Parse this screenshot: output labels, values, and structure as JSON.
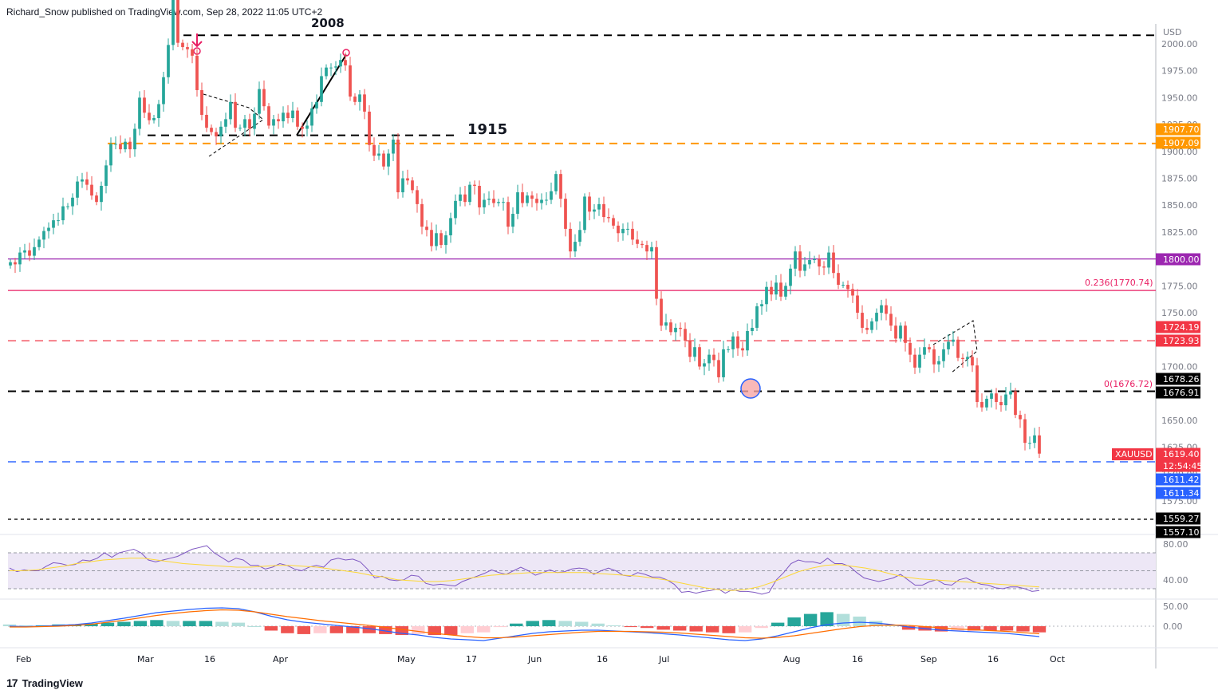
{
  "header": {
    "publisher_line": "Richard_Snow published on TradingView.com, Sep 28, 2022 11:05 UTC+2"
  },
  "footer": {
    "brand": "TradingView",
    "logo_glyph": "17"
  },
  "chart_data": {
    "type": "candlestick",
    "symbol": "XAUUSD",
    "currency": "USD",
    "x_labels": [
      "Feb",
      "Mar",
      "16",
      "Apr",
      "May",
      "17",
      "Jun",
      "16",
      "Jul",
      "Aug",
      "16",
      "Sep",
      "16",
      "Oct"
    ],
    "y_ticks": [
      2000.0,
      1975.0,
      1950.0,
      1925.0,
      1900.0,
      1875.0,
      1850.0,
      1825.0,
      1800.0,
      1775.0,
      1750.0,
      1725.0,
      1700.0,
      1675.0,
      1650.0,
      1625.0,
      1600.0,
      1575.0
    ],
    "y_tick_labels": [
      "2000.00",
      "1975.00",
      "1950.00",
      "1925.00",
      "1900.00",
      "1875.00",
      "1850.00",
      "1825.00",
      "1800.00",
      "1775.00",
      "1750.00",
      "1725.00",
      "1700.00",
      "1675.00",
      "1650.00",
      "1625.00",
      "1600.00",
      "1575.00"
    ],
    "ylim": [
      1556,
      2010
    ],
    "grid": false,
    "annotations": {
      "label_2008": "2008",
      "label_1915": "1915",
      "fib_0236": "0.236(1770.74)",
      "fib_0": "0(1676.72)"
    },
    "levels": [
      {
        "value": 2008,
        "style": "dashed",
        "color": "#000000"
      },
      {
        "value": 1915,
        "style": "dashed",
        "color": "#000000"
      },
      {
        "value": 1907.4,
        "style": "dashed",
        "color": "#ff9800"
      },
      {
        "value": 1800,
        "style": "solid",
        "color": "#9c27b0"
      },
      {
        "value": 1770.74,
        "style": "solid",
        "color": "#e91e63"
      },
      {
        "value": 1724,
        "style": "dashed",
        "color": "#f23645"
      },
      {
        "value": 1677,
        "style": "dashed",
        "color": "#000000"
      },
      {
        "value": 1611.4,
        "style": "dashed",
        "color": "#2962ff"
      },
      {
        "value": 1558,
        "style": "dashed",
        "color": "#000000"
      }
    ],
    "price_badges": [
      {
        "text": "1907.70",
        "value": 1907.7,
        "bg": "#ff9800"
      },
      {
        "text": "1907.09",
        "value": 1907.09,
        "bg": "#ff9800"
      },
      {
        "text": "1800.00",
        "value": 1800,
        "bg": "#9c27b0"
      },
      {
        "text": "1724.19",
        "value": 1724.19,
        "bg": "#f23645"
      },
      {
        "text": "1723.93",
        "value": 1723.93,
        "bg": "#f23645"
      },
      {
        "text": "1678.26",
        "value": 1678.26,
        "bg": "#000000"
      },
      {
        "text": "1676.91",
        "value": 1676.91,
        "bg": "#000000"
      },
      {
        "text": "1619.40",
        "value": 1619.4,
        "bg": "#f23645"
      },
      {
        "text": "12:54:45",
        "value": 1609.5,
        "bg": "#f23645"
      },
      {
        "text": "1611.42",
        "value": 1611.42,
        "bg": "#2962ff"
      },
      {
        "text": "1611.34",
        "value": 1611.34,
        "bg": "#2962ff"
      },
      {
        "text": "1559.27",
        "value": 1559.27,
        "bg": "#000000"
      },
      {
        "text": "1557.10",
        "value": 1557.1,
        "bg": "#000000"
      }
    ],
    "symbol_badge": {
      "text": "XAUUSD",
      "bg": "#f23645"
    },
    "closes": [
      1797,
      1795,
      1806,
      1808,
      1803,
      1811,
      1818,
      1826,
      1829,
      1836,
      1836,
      1849,
      1849,
      1857,
      1872,
      1874,
      1869,
      1859,
      1853,
      1868,
      1887,
      1907,
      1907,
      1902,
      1909,
      1902,
      1921,
      1950,
      1936,
      1929,
      1931,
      1944,
      1969,
      1999,
      2045,
      2001,
      1997,
      1995,
      1989,
      1957,
      1934,
      1922,
      1918,
      1914,
      1923,
      1930,
      1946,
      1922,
      1922,
      1930,
      1921,
      1935,
      1958,
      1942,
      1924,
      1930,
      1928,
      1936,
      1931,
      1938,
      1923,
      1921,
      1924,
      1940,
      1946,
      1970,
      1978,
      1978,
      1979,
      1985,
      1980,
      1951,
      1946,
      1953,
      1937,
      1906,
      1896,
      1898,
      1886,
      1898,
      1911,
      1862,
      1875,
      1873,
      1864,
      1851,
      1830,
      1827,
      1812,
      1824,
      1813,
      1822,
      1838,
      1854,
      1860,
      1853,
      1869,
      1868,
      1848,
      1855,
      1856,
      1852,
      1853,
      1853,
      1830,
      1842,
      1862,
      1852,
      1859,
      1856,
      1852,
      1855,
      1855,
      1863,
      1879,
      1856,
      1828,
      1807,
      1816,
      1827,
      1858,
      1844,
      1846,
      1851,
      1839,
      1838,
      1831,
      1824,
      1828,
      1828,
      1818,
      1814,
      1813,
      1807,
      1811,
      1763,
      1738,
      1741,
      1732,
      1736,
      1735,
      1724,
      1709,
      1718,
      1700,
      1703,
      1711,
      1706,
      1690,
      1716,
      1716,
      1728,
      1717,
      1715,
      1733,
      1736,
      1756,
      1758,
      1774,
      1767,
      1778,
      1765,
      1775,
      1791,
      1807,
      1789,
      1795,
      1799,
      1800,
      1793,
      1792,
      1806,
      1787,
      1776,
      1776,
      1772,
      1766,
      1750,
      1736,
      1734,
      1742,
      1750,
      1757,
      1749,
      1738,
      1726,
      1738,
      1722,
      1711,
      1699,
      1711,
      1718,
      1716,
      1702,
      1705,
      1716,
      1723,
      1725,
      1708,
      1707,
      1709,
      1701,
      1667,
      1662,
      1670,
      1675,
      1667,
      1664,
      1674,
      1677,
      1655,
      1651,
      1629,
      1629,
      1636,
      1619
    ],
    "rsi": {
      "range": [
        0,
        100
      ],
      "ticks": [
        80,
        40
      ],
      "tick_labels": [
        "80.00",
        "40.00"
      ],
      "series": [
        53,
        49,
        51,
        50,
        50,
        55,
        59,
        58,
        56,
        57,
        62,
        61,
        64,
        70,
        65,
        70,
        72,
        74,
        70,
        62,
        60,
        62,
        64,
        66,
        70,
        74,
        76,
        78,
        70,
        65,
        60,
        64,
        62,
        56,
        56,
        52,
        54,
        58,
        56,
        52,
        50,
        54,
        56,
        54,
        62,
        64,
        62,
        63,
        60,
        52,
        42,
        44,
        40,
        39,
        40,
        45,
        44,
        36,
        34,
        35,
        34,
        33,
        38,
        41,
        44,
        47,
        51,
        48,
        46,
        50,
        54,
        50,
        45,
        48,
        51,
        48,
        49,
        52,
        53,
        52,
        46,
        50,
        53,
        50,
        45,
        44,
        48,
        46,
        43,
        43,
        40,
        35,
        26,
        27,
        25,
        27,
        28,
        30,
        25,
        29,
        27,
        27,
        26,
        24,
        26,
        40,
        48,
        58,
        62,
        60,
        60,
        58,
        64,
        58,
        58,
        55,
        48,
        42,
        40,
        38,
        40,
        42,
        46,
        40,
        34,
        34,
        38,
        40,
        35,
        34,
        40,
        42,
        38,
        35,
        34,
        31,
        30,
        32,
        32,
        30,
        27,
        28
      ],
      "signal": [
        50,
        50,
        51,
        53,
        55,
        58,
        60,
        62,
        63,
        64,
        64,
        62,
        60,
        58,
        57,
        56,
        55,
        54,
        54,
        55,
        56,
        56,
        55,
        54,
        52,
        50,
        48,
        45,
        43,
        40,
        39,
        38,
        38,
        39,
        41,
        43,
        45,
        46,
        47,
        48,
        48,
        48,
        48,
        48,
        47,
        46,
        45,
        44,
        42,
        40,
        37,
        34,
        31,
        29,
        28,
        29,
        32,
        37,
        43,
        49,
        53,
        56,
        57,
        55,
        53,
        50,
        46,
        43,
        41,
        40,
        39,
        38,
        37,
        36,
        35,
        34,
        33,
        32
      ],
      "band": [
        30,
        70
      ]
    },
    "macd": {
      "zero_label": "0.00",
      "upper_label": "50.00",
      "macd_line": [
        0,
        -1,
        0,
        2,
        4,
        8,
        14,
        20,
        27,
        34,
        38,
        42,
        45,
        46,
        44,
        36,
        25,
        16,
        10,
        6,
        2,
        -2,
        -6,
        -12,
        -18,
        -22,
        -28,
        -32,
        -34,
        -36,
        -30,
        -24,
        -18,
        -14,
        -12,
        -10,
        -10,
        -12,
        -14,
        -16,
        -19,
        -22,
        -26,
        -30,
        -34,
        -36,
        -32,
        -24,
        -14,
        -4,
        4,
        8,
        10,
        8,
        4,
        -2,
        -6,
        -10,
        -12,
        -14,
        -16,
        -18,
        -22,
        -26
      ],
      "signal_line": [
        -2,
        -2,
        -1,
        0,
        2,
        5,
        10,
        15,
        21,
        27,
        32,
        36,
        39,
        41,
        40,
        36,
        30,
        24,
        19,
        14,
        10,
        6,
        2,
        -3,
        -8,
        -13,
        -18,
        -22,
        -26,
        -29,
        -29,
        -27,
        -24,
        -21,
        -18,
        -15,
        -13,
        -13,
        -13,
        -14,
        -15,
        -17,
        -20,
        -23,
        -26,
        -29,
        -30,
        -28,
        -24,
        -18,
        -12,
        -6,
        -1,
        2,
        3,
        2,
        -1,
        -4,
        -7,
        -9,
        -11,
        -13,
        -16,
        -19
      ],
      "range": [
        -30,
        50
      ]
    },
    "colors": {
      "up": "#26a69a",
      "down": "#ef5350",
      "rsi": "#7e57c2",
      "rsi_ma": "#fdd835",
      "macd": "#2962ff",
      "signal": "#ff6d00",
      "rsi_band": "#ede7f6"
    }
  }
}
